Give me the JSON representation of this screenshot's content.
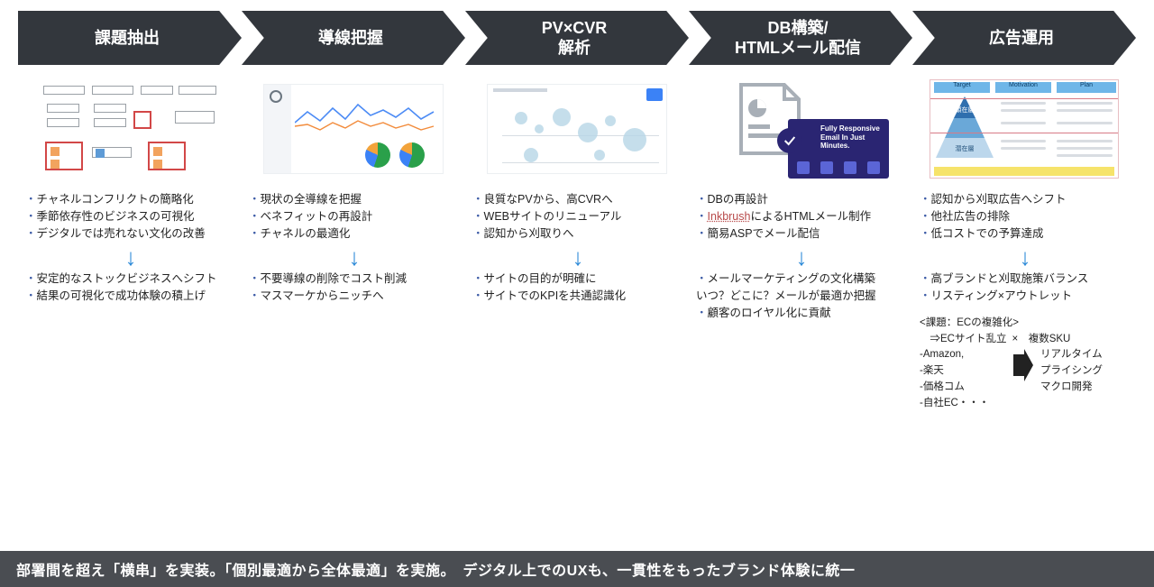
{
  "palette": {
    "chevron_fill": "#33373d",
    "chevron_text": "#ffffff",
    "bullet_marker": "#3b5aa6",
    "arrow_down": "#2f8bd8",
    "footer_bg": "#4a4d52",
    "footer_text": "#ffffff",
    "link_spell": "#b84a4a"
  },
  "stages": [
    {
      "title": "課題抽出",
      "top_bullets": [
        "チャネルコンフリクトの簡略化",
        "季節依存性のビジネスの可視化",
        "デジタルでは売れない文化の改善"
      ],
      "bottom_bullets": [
        "安定的なストックビジネスへシフト",
        "結果の可視化で成功体験の積上げ"
      ]
    },
    {
      "title": "導線把握",
      "top_bullets": [
        "現状の全導線を把握",
        "ベネフィットの再設計",
        "チャネルの最適化"
      ],
      "bottom_bullets": [
        "不要導線の削除でコスト削減",
        "マスマーケからニッチへ"
      ]
    },
    {
      "title": "PV×CVR\n解析",
      "top_bullets": [
        "良質なPVから、高CVRへ",
        "WEBサイトのリニューアル",
        "認知から刈取りへ"
      ],
      "bottom_bullets": [
        "サイトの目的が明確に",
        "サイトでのKPIを共通認識化"
      ]
    },
    {
      "title": "DB構築/\nHTMLメール配信",
      "top_bullets": [
        "DBの再設計",
        {
          "prefix": "",
          "link": "Inkbrush",
          "suffix": "によるHTMLメール制作"
        },
        "簡易ASPでメール配信"
      ],
      "bottom_bullets": [
        "メールマーケティングの文化構築",
        {
          "plain": "いつ？どこに？メールが最適か把握"
        },
        "顧客のロイヤル化に貢献"
      ]
    },
    {
      "title": "広告運用",
      "top_bullets": [
        "認知から刈取広告へシフト",
        "他社広告の排除",
        "低コストでの予算達成"
      ],
      "bottom_bullets": [
        "高ブランドと刈取施策バランス",
        "リスティング×アウトレット"
      ],
      "extra": {
        "heading": "<課題：ECの複雑化>",
        "left_line1": "　⇒ECサイト乱立",
        "right_top": "×　複数SKU",
        "left_list": [
          "-Amazon,",
          "-楽天",
          "-価格コム",
          "-自社EC・・・"
        ],
        "right_list": [
          "リアルタイム",
          "プライシング",
          "マクロ開発"
        ]
      }
    }
  ],
  "thumbs": {
    "t2": {
      "line_points_a": [
        0,
        34,
        14,
        22,
        28,
        32,
        42,
        18,
        56,
        30,
        70,
        14,
        84,
        26,
        98,
        20,
        112,
        28,
        126,
        18,
        140,
        30,
        154,
        22
      ],
      "line_color_a": "#4c8bf5",
      "line_points_b": [
        0,
        38,
        14,
        36,
        28,
        42,
        42,
        34,
        56,
        40,
        70,
        32,
        84,
        38,
        98,
        34,
        112,
        40,
        126,
        36,
        140,
        42,
        154,
        38
      ],
      "line_color_b": "#f28b3b",
      "pie_colors": [
        "#2aa04a",
        "#3b82f6",
        "#f2a33b"
      ]
    },
    "t5": {
      "headers": [
        "Target",
        "Motivation",
        "Plan"
      ],
      "tri_colors": [
        "#2f6fae",
        "#6aa8d8",
        "#bcd7ec"
      ],
      "tri_labels": [
        "顕在層",
        "",
        "潜在層"
      ]
    }
  },
  "footer": "部署間を超え「横串」を実装。「個別最適から全体最適」を実施。　デジタル上でのUXも、一貫性をもったブランド体験に統一"
}
